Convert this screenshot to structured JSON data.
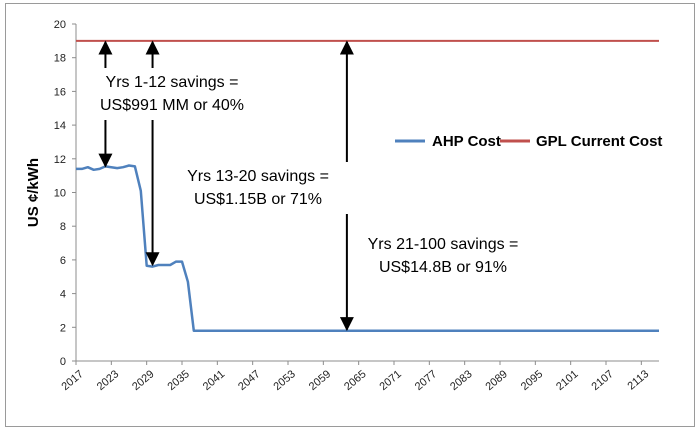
{
  "chart_data": {
    "type": "line",
    "ylabel": "US ¢/kWh",
    "xlabel": "",
    "title": "",
    "ylim": [
      0,
      20
    ],
    "yticks": [
      0,
      2,
      4,
      6,
      8,
      10,
      12,
      14,
      16,
      18,
      20
    ],
    "xlim": [
      2017,
      2116
    ],
    "xticks": [
      2017,
      2023,
      2029,
      2035,
      2041,
      2047,
      2053,
      2059,
      2065,
      2071,
      2077,
      2083,
      2089,
      2095,
      2101,
      2107,
      2113
    ],
    "grid": false,
    "legend": "right",
    "series": [
      {
        "name": "AHP Cost",
        "color": "#4f81bd",
        "points": [
          [
            2017,
            11.4
          ],
          [
            2018,
            11.4
          ],
          [
            2019,
            11.5
          ],
          [
            2020,
            11.35
          ],
          [
            2021,
            11.4
          ],
          [
            2022,
            11.55
          ],
          [
            2023,
            11.5
          ],
          [
            2024,
            11.45
          ],
          [
            2025,
            11.5
          ],
          [
            2026,
            11.6
          ],
          [
            2027,
            11.55
          ],
          [
            2028,
            10.1
          ],
          [
            2029,
            5.65
          ],
          [
            2030,
            5.6
          ],
          [
            2031,
            5.7
          ],
          [
            2032,
            5.7
          ],
          [
            2033,
            5.7
          ],
          [
            2034,
            5.9
          ],
          [
            2035,
            5.9
          ],
          [
            2036,
            4.7
          ],
          [
            2037,
            1.8
          ],
          [
            2116,
            1.8
          ]
        ]
      },
      {
        "name": "GPL Current Cost",
        "color": "#c0504d",
        "points": [
          [
            2017,
            19.0
          ],
          [
            2116,
            19.0
          ]
        ]
      }
    ],
    "annotations": [
      {
        "lines": [
          "Yrs 1-12 savings =",
          "US$991 MM  or 40%"
        ]
      },
      {
        "lines": [
          "Yrs 13-20 savings =",
          "US$1.15B or 71%"
        ]
      },
      {
        "lines": [
          "Yrs 21-100 savings =",
          "US$14.8B or 91%"
        ]
      }
    ],
    "arrows": [
      {
        "x": 2022,
        "from": 19.0,
        "to": 11.5
      },
      {
        "x": 2030,
        "from": 19.0,
        "to": 5.65
      },
      {
        "x": 2063,
        "from": 19.0,
        "to": 1.8
      }
    ]
  }
}
